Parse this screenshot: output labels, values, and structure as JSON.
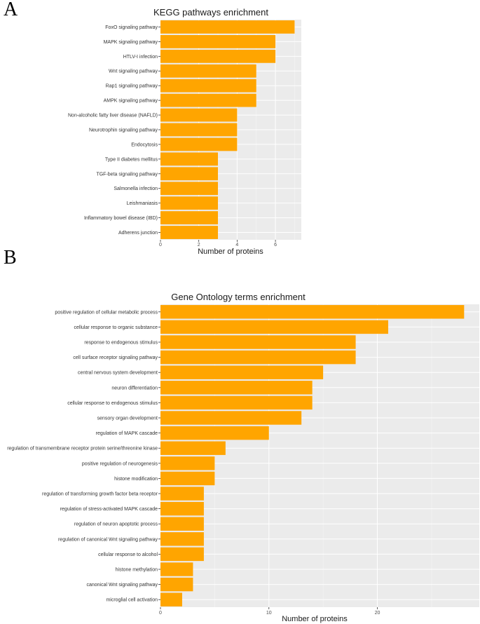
{
  "colors": {
    "bar": "#FFA500",
    "panel_bg": "#EBEBEB",
    "grid_major": "#FFFFFF",
    "tick": "#333333"
  },
  "chart_data": [
    {
      "panel_label": "A",
      "type": "bar",
      "orientation": "horizontal",
      "title": "KEGG pathways enrichment",
      "xlabel": "Number of proteins",
      "ylabel": "",
      "xlim": [
        0,
        7.35
      ],
      "xticks": [
        0,
        2,
        4,
        6
      ],
      "categories": [
        "FoxO signaling pathway",
        "MAPK signaling pathway",
        "HTLV-I infection",
        "Wnt signaling pathway",
        "Rap1 signaling pathway",
        "AMPK signaling pathway",
        "Non-alcoholic fatty liver disease (NAFLD)",
        "Neurotrophin signaling pathway",
        "Endocytosis",
        "Type II diabetes mellitus",
        "TGF-beta signaling pathway",
        "Salmonella infection",
        "Leishmaniasis",
        "Inflammatory bowel disease (IBD)",
        "Adherens junction"
      ],
      "values": [
        7,
        6,
        6,
        5,
        5,
        5,
        4,
        4,
        4,
        3,
        3,
        3,
        3,
        3,
        3
      ]
    },
    {
      "panel_label": "B",
      "type": "bar",
      "orientation": "horizontal",
      "title": "Gene Ontology terms enrichment",
      "xlabel": "Number of proteins",
      "ylabel": "",
      "xlim": [
        0,
        29.4
      ],
      "xticks": [
        0,
        10,
        20
      ],
      "categories": [
        "positive regulation of cellular metabolic process",
        "cellular response to organic substance",
        "response to endogenous stimulus",
        "cell surface receptor signaling pathway",
        "central nervous system development",
        "neuron differentiation",
        "cellular response to endogenous stimulus",
        "sensory organ development",
        "regulation of MAPK cascade",
        "regulation of transmembrane receptor protein serine/threonine kinase",
        "positive regulation of neurogenesis",
        "histone modification",
        "regulation of transforming growth factor beta receptor",
        "regulation of stress-activated MAPK cascade",
        "regulation of neuron apoptotic process",
        "regulation of canonical Wnt signaling pathway",
        "cellular response to alcohol",
        "histone methylation",
        "canonical Wnt signaling pathway",
        "microglial cell activation"
      ],
      "values": [
        28,
        21,
        18,
        18,
        15,
        14,
        14,
        13,
        10,
        6,
        5,
        5,
        4,
        4,
        4,
        4,
        4,
        3,
        3,
        2
      ]
    }
  ]
}
